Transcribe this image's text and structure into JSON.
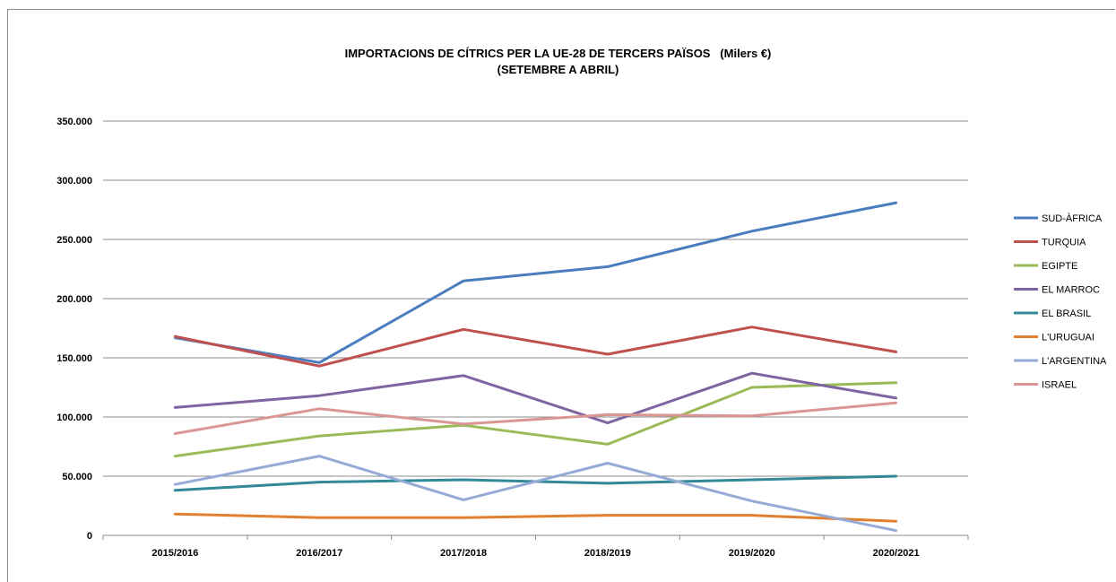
{
  "chart_data": {
    "type": "line",
    "title": "IMPORTACIONS DE CÍTRICS PER LA UE-28 DE TERCERS PAÏSOS   (Milers €)",
    "subtitle": "(SETEMBRE A ABRIL)",
    "categories": [
      "2015/2016",
      "2016/2017",
      "2017/2018",
      "2018/2019",
      "2019/2020",
      "2020/2021"
    ],
    "ylim": [
      0,
      350000
    ],
    "yticks": [
      0,
      50000,
      100000,
      150000,
      200000,
      250000,
      300000,
      350000
    ],
    "ytick_labels": [
      "0",
      "50.000",
      "100.000",
      "150.000",
      "200.000",
      "250.000",
      "300.000",
      "350.000"
    ],
    "grid": true,
    "legend_position": "right",
    "series": [
      {
        "name": "SUD-ÀFRICA",
        "color": "#4a7dbf",
        "values": [
          167000,
          146000,
          215000,
          227000,
          257000,
          281000
        ]
      },
      {
        "name": "TURQUIA",
        "color": "#c0504d",
        "values": [
          168000,
          143000,
          174000,
          153000,
          176000,
          155000
        ]
      },
      {
        "name": "EGIPTE",
        "color": "#9bbb59",
        "values": [
          67000,
          84000,
          93000,
          77000,
          125000,
          129000
        ]
      },
      {
        "name": "EL MARROC",
        "color": "#8064a2",
        "values": [
          108000,
          118000,
          135000,
          95000,
          137000,
          116000
        ]
      },
      {
        "name": "EL BRASIL",
        "color": "#31899a",
        "values": [
          38000,
          45000,
          47000,
          44000,
          47000,
          50000
        ]
      },
      {
        "name": "L'URUGUAI",
        "color": "#e3802f",
        "values": [
          18000,
          15000,
          15000,
          17000,
          17000,
          12000
        ]
      },
      {
        "name": "L'ARGENTINA",
        "color": "#95abd6",
        "values": [
          43000,
          67000,
          30000,
          61000,
          29000,
          4000
        ]
      },
      {
        "name": "ISRAEL",
        "color": "#d99694",
        "values": [
          86000,
          107000,
          94000,
          102000,
          101000,
          112000
        ]
      }
    ]
  }
}
